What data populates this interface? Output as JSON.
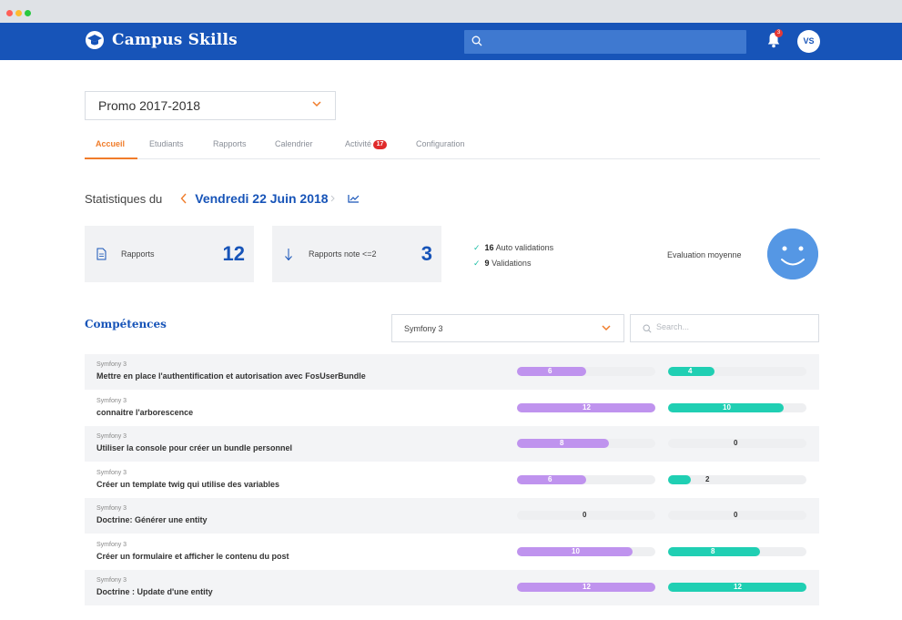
{
  "app": {
    "name": "Campus Skills",
    "user_initials": "VS",
    "notifications": "3",
    "colors": {
      "brand": "#1754b8",
      "accent": "#f07c2a",
      "purple": "#bf93ee",
      "teal": "#20cfb3"
    }
  },
  "promo": {
    "selected": "Promo 2017-2018"
  },
  "tabs": [
    {
      "label": "Accueil",
      "active": true
    },
    {
      "label": "Etudiants"
    },
    {
      "label": "Rapports"
    },
    {
      "label": "Calendrier"
    },
    {
      "label": "Activité",
      "badge": "17"
    },
    {
      "label": "Configuration"
    }
  ],
  "stats": {
    "label": "Statistiques du",
    "date": "Vendredi 22 Juin 2018",
    "reports_label": "Rapports",
    "reports_count": "12",
    "low_reports_label": "Rapports note <=2",
    "low_reports_count": "3",
    "auto_validations_count": "16",
    "auto_validations_label": "Auto validations",
    "validations_count": "9",
    "validations_label": "Validations",
    "evaluation_label": "Evaluation moyenne"
  },
  "competences": {
    "title": "Compétences",
    "filter_value": "Symfony 3",
    "search_placeholder": "Search...",
    "max": 12,
    "rows": [
      {
        "category": "Symfony 3",
        "name": "Mettre en place l'authentification et autorisation avec FosUserBundle",
        "a": 6,
        "b": 4
      },
      {
        "category": "Symfony 3",
        "name": "connaitre l'arborescence",
        "a": 12,
        "b": 10
      },
      {
        "category": "Symfony 3",
        "name": "Utiliser la console pour créer un bundle personnel",
        "a": 8,
        "b": 0
      },
      {
        "category": "Symfony 3",
        "name": "Créer un template twig qui utilise des variables",
        "a": 6,
        "b": 2
      },
      {
        "category": "Symfony 3",
        "name": "Doctrine: Générer une entity",
        "a": 0,
        "b": 0
      },
      {
        "category": "Symfony 3",
        "name": "Créer un formulaire et afficher le contenu du post",
        "a": 10,
        "b": 8
      },
      {
        "category": "Symfony 3",
        "name": "Doctrine : Update d'une entity",
        "a": 12,
        "b": 12
      }
    ]
  }
}
